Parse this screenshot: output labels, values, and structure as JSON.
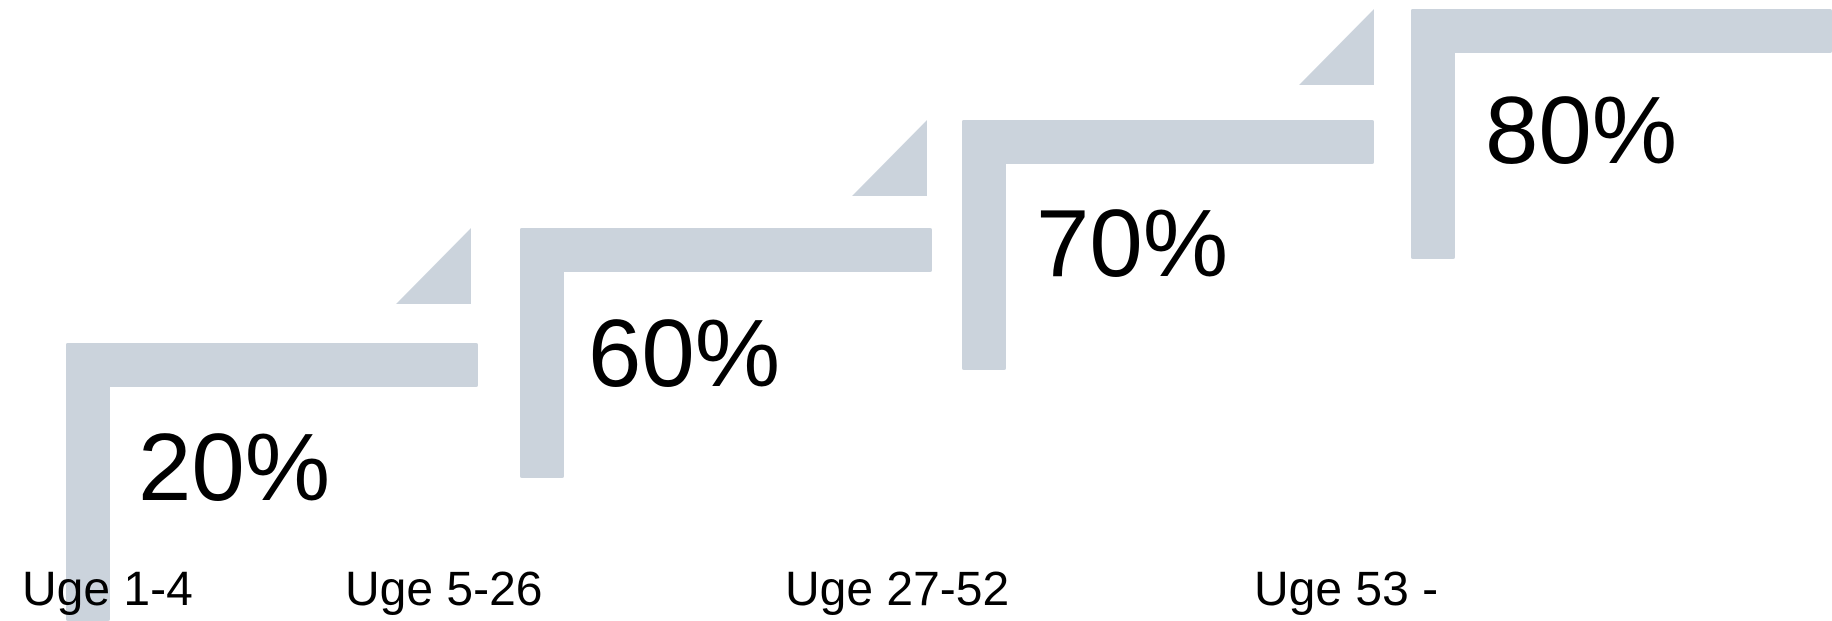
{
  "colors": {
    "step": "#cbd3dc",
    "text": "#000000",
    "background": "#ffffff"
  },
  "steps": [
    {
      "percent": "20%",
      "week": "Uge 1-4"
    },
    {
      "percent": "60%",
      "week": "Uge 5-26"
    },
    {
      "percent": "70%",
      "week": "Uge 27-52"
    },
    {
      "percent": "80%",
      "week": "Uge 53 -"
    }
  ]
}
